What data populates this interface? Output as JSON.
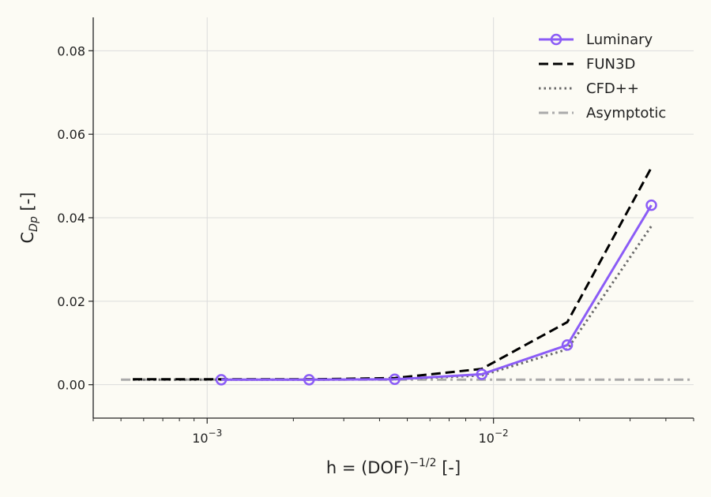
{
  "chart_data": {
    "type": "line",
    "title": "",
    "xlabel": {
      "base": "h = (DOF)",
      "exponent": "−1/2",
      "suffix": " [-]"
    },
    "ylabel": {
      "base": "C",
      "subscript": "Dp",
      "suffix": " [-]"
    },
    "xscale": "log",
    "xlim": [
      0.0004,
      0.05
    ],
    "ylim": [
      -0.008,
      0.088
    ],
    "xticks": [
      {
        "value": 0.001,
        "base": "10",
        "exponent": "−3"
      },
      {
        "value": 0.01,
        "base": "10",
        "exponent": "−2"
      }
    ],
    "yticks": [
      {
        "value": 0.0,
        "label": "0.00"
      },
      {
        "value": 0.02,
        "label": "0.02"
      },
      {
        "value": 0.04,
        "label": "0.04"
      },
      {
        "value": 0.06,
        "label": "0.06"
      },
      {
        "value": 0.08,
        "label": "0.08"
      }
    ],
    "grid": true,
    "legend_position": "top-right",
    "series": [
      {
        "name": "Luminary",
        "style": "solid-markers",
        "color": "#8b5cf6",
        "x": [
          0.00112,
          0.00227,
          0.00452,
          0.0091,
          0.0181,
          0.0356
        ],
        "y": [
          0.0012,
          0.0012,
          0.0013,
          0.0025,
          0.0095,
          0.043
        ]
      },
      {
        "name": "FUN3D",
        "style": "dashed",
        "color": "#000000",
        "x": [
          0.00055,
          0.00112,
          0.00227,
          0.00452,
          0.0091,
          0.0181,
          0.0356
        ],
        "y": [
          0.0013,
          0.0013,
          0.0013,
          0.0016,
          0.0038,
          0.015,
          0.052
        ]
      },
      {
        "name": "CFD++",
        "style": "dotted",
        "color": "#6b6b6b",
        "x": [
          0.00055,
          0.00112,
          0.00227,
          0.00452,
          0.0091,
          0.0181,
          0.0356
        ],
        "y": [
          0.0012,
          0.0012,
          0.0012,
          0.0013,
          0.0022,
          0.0085,
          0.038
        ]
      },
      {
        "name": "Asymptotic",
        "style": "dashdot",
        "color": "#aaaaaa",
        "x": [
          0.0005,
          0.05
        ],
        "y": [
          0.0012,
          0.0012
        ]
      }
    ]
  }
}
